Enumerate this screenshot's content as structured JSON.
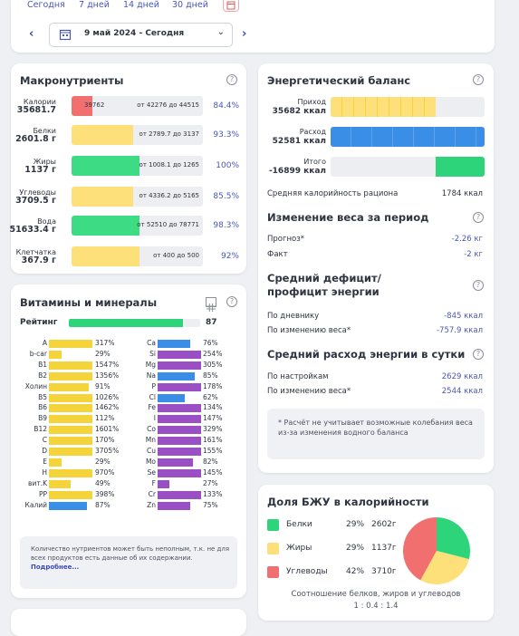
{
  "period": {
    "quick": [
      "Сегодня",
      "7 дней",
      "14 дней",
      "30 дней"
    ],
    "range_label": "9 май 2024 - Сегодня"
  },
  "macros": {
    "title": "Макронутриенты",
    "rows": [
      {
        "name": "Калории",
        "value": "35681.7",
        "bar_label": "39762",
        "range": "от 42276 до 44515",
        "pct": "84.4%",
        "color": "#f26f6f",
        "fill": 0.16
      },
      {
        "name": "Белки",
        "value": "2601.8 г",
        "bar_label": "",
        "range": "от 2789.7 до 3137",
        "pct": "93.3%",
        "color": "#fde07a",
        "fill": 0.47
      },
      {
        "name": "Жиры",
        "value": "1137 г",
        "bar_label": "",
        "range": "от 1008.1 до 1265",
        "pct": "100%",
        "color": "#3ddc84",
        "fill": 0.52
      },
      {
        "name": "Углеводы",
        "value": "3709.5 г",
        "bar_label": "",
        "range": "от 4336.2 до 5165",
        "pct": "85.5%",
        "color": "#fde07a",
        "fill": 0.47
      },
      {
        "name": "Вода",
        "value": "51633.4 г",
        "bar_label": "",
        "range": "от 52510 до 78771",
        "pct": "98.3%",
        "color": "#3ddc84",
        "fill": 0.52
      },
      {
        "name": "Клетчатка",
        "value": "367.9 г",
        "bar_label": "",
        "range": "от 400 до 500",
        "pct": "92%",
        "color": "#fde07a",
        "fill": 0.52
      }
    ]
  },
  "vitamins": {
    "title": "Витамины и минералы",
    "rating_label": "Рейтинг",
    "rating_value": "87",
    "rating_fill": 0.87,
    "left": [
      {
        "n": "A",
        "v": "317%",
        "c": "#f5d33b",
        "f": 1.0
      },
      {
        "n": "b-car",
        "v": "29%",
        "c": "#f5d33b",
        "f": 0.29
      },
      {
        "n": "B1",
        "v": "1547%",
        "c": "#f5d33b",
        "f": 1.0
      },
      {
        "n": "B2",
        "v": "1356%",
        "c": "#f5d33b",
        "f": 1.0
      },
      {
        "n": "Холин",
        "v": "91%",
        "c": "#f5d33b",
        "f": 0.91
      },
      {
        "n": "B5",
        "v": "1026%",
        "c": "#f5d33b",
        "f": 1.0
      },
      {
        "n": "B6",
        "v": "1462%",
        "c": "#f5d33b",
        "f": 1.0
      },
      {
        "n": "B9",
        "v": "112%",
        "c": "#f5d33b",
        "f": 1.0
      },
      {
        "n": "B12",
        "v": "1601%",
        "c": "#f5d33b",
        "f": 1.0
      },
      {
        "n": "C",
        "v": "170%",
        "c": "#f5d33b",
        "f": 1.0
      },
      {
        "n": "D",
        "v": "3705%",
        "c": "#f5d33b",
        "f": 1.0
      },
      {
        "n": "E",
        "v": "29%",
        "c": "#f5d33b",
        "f": 0.29
      },
      {
        "n": "H",
        "v": "970%",
        "c": "#f5d33b",
        "f": 1.0
      },
      {
        "n": "вит.K",
        "v": "49%",
        "c": "#f5d33b",
        "f": 0.49
      },
      {
        "n": "PP",
        "v": "398%",
        "c": "#f5d33b",
        "f": 1.0
      },
      {
        "n": "Калий",
        "v": "87%",
        "c": "#3a8ee6",
        "f": 0.87
      }
    ],
    "right": [
      {
        "n": "Ca",
        "v": "76%",
        "c": "#3a8ee6",
        "f": 0.76
      },
      {
        "n": "Si",
        "v": "254%",
        "c": "#9b4fc4",
        "f": 1.0
      },
      {
        "n": "Mg",
        "v": "305%",
        "c": "#9b4fc4",
        "f": 1.0
      },
      {
        "n": "Na",
        "v": "85%",
        "c": "#3a8ee6",
        "f": 0.85
      },
      {
        "n": "P",
        "v": "178%",
        "c": "#9b4fc4",
        "f": 1.0
      },
      {
        "n": "Cl",
        "v": "62%",
        "c": "#3a8ee6",
        "f": 0.62
      },
      {
        "n": "Fe",
        "v": "134%",
        "c": "#9b4fc4",
        "f": 1.0
      },
      {
        "n": "I",
        "v": "147%",
        "c": "#9b4fc4",
        "f": 1.0
      },
      {
        "n": "Co",
        "v": "329%",
        "c": "#9b4fc4",
        "f": 1.0
      },
      {
        "n": "Mn",
        "v": "161%",
        "c": "#9b4fc4",
        "f": 1.0
      },
      {
        "n": "Cu",
        "v": "155%",
        "c": "#9b4fc4",
        "f": 1.0
      },
      {
        "n": "Mo",
        "v": "82%",
        "c": "#9b4fc4",
        "f": 0.82
      },
      {
        "n": "Se",
        "v": "145%",
        "c": "#9b4fc4",
        "f": 1.0
      },
      {
        "n": "F",
        "v": "27%",
        "c": "#9b4fc4",
        "f": 0.27
      },
      {
        "n": "Cr",
        "v": "133%",
        "c": "#9b4fc4",
        "f": 1.0
      },
      {
        "n": "Zn",
        "v": "75%",
        "c": "#9b4fc4",
        "f": 0.75
      }
    ],
    "note": "Количество нутриентов может быть неполным, т.к. не для всех продуктов есть данные об их содержании.",
    "note_link": "Подробнее..."
  },
  "energy": {
    "title": "Энергетический баланс",
    "income_label": "Приход",
    "income_value": "35682 ккал",
    "expense_label": "Расход",
    "expense_value": "52581 ккал",
    "total_label": "Итого",
    "total_value": "-16899 ккал",
    "income_fill": 0.68,
    "expense_fill": 1.0,
    "total_fill": 0.32,
    "avg_label": "Средняя калорийность рациона",
    "avg_value": "1784 ккал",
    "weight_title": "Изменение веса за период",
    "forecast_label": "Прогноз*",
    "forecast_value": "-2.26 кг",
    "fact_label": "Факт",
    "fact_value": "-2 кг",
    "deficit_title": "Средний дефицит/профицит энергии",
    "daily_label": "По дневнику",
    "daily_value": "-845 ккал",
    "weight_change_label": "По изменению веса*",
    "weight_change_value": "-757.9 ккал",
    "expense_title": "Средний расход энергии в сутки",
    "settings_label": "По настройкам",
    "settings_value": "2629 ккал",
    "weight_change2_label": "По изменению веса*",
    "weight_change2_value": "2544 ккал",
    "footnote": "* Расчёт не учитывает возможные колебания веса из-за изменения водного баланса"
  },
  "bju": {
    "title": "Доля БЖУ в калорийности",
    "items": [
      {
        "name": "Белки",
        "pct": "29%",
        "grams": "2602г",
        "color": "#2ed47a",
        "share": 0.29
      },
      {
        "name": "Жиры",
        "pct": "29%",
        "grams": "1137г",
        "color": "#fde07a",
        "share": 0.29
      },
      {
        "name": "Углеводы",
        "pct": "42%",
        "grams": "3710г",
        "color": "#f26f6f",
        "share": 0.42
      }
    ],
    "ratio_label": "Соотношение белков, жиров и углеводов",
    "ratio_value": "1 : 0.4 : 1.4"
  }
}
